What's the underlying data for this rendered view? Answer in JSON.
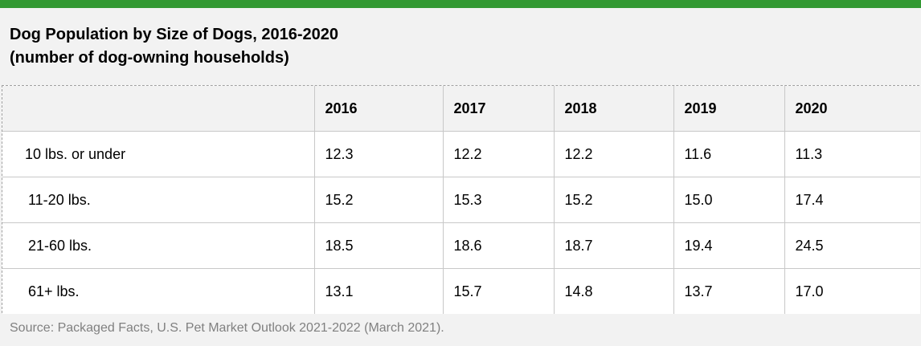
{
  "chart_data": {
    "type": "table",
    "title": "Dog Population by Size of Dogs, 2016-2020",
    "subtitle": "(number of dog-owning households)",
    "columns": [
      "",
      "2016",
      "2017",
      "2018",
      "2019",
      "2020"
    ],
    "rows": [
      {
        "label": "10 lbs. or under",
        "values": [
          "12.3",
          "12.2",
          "12.2",
          "11.6",
          "11.3"
        ]
      },
      {
        "label": "11-20 lbs.",
        "values": [
          "15.2",
          "15.3",
          "15.2",
          "15.0",
          "17.4"
        ]
      },
      {
        "label": "21-60 lbs.",
        "values": [
          "18.5",
          "18.6",
          "18.7",
          "19.4",
          "24.5"
        ]
      },
      {
        "label": "61+ lbs.",
        "values": [
          "13.1",
          "15.7",
          "14.8",
          "13.7",
          "17.0"
        ]
      }
    ],
    "source": "Source: Packaged Facts, U.S. Pet Market Outlook 2021-2022 (March 2021)."
  },
  "colors": {
    "accent_bar": "#339933",
    "header_bg": "#f2f2f2",
    "source_text": "#808080"
  }
}
